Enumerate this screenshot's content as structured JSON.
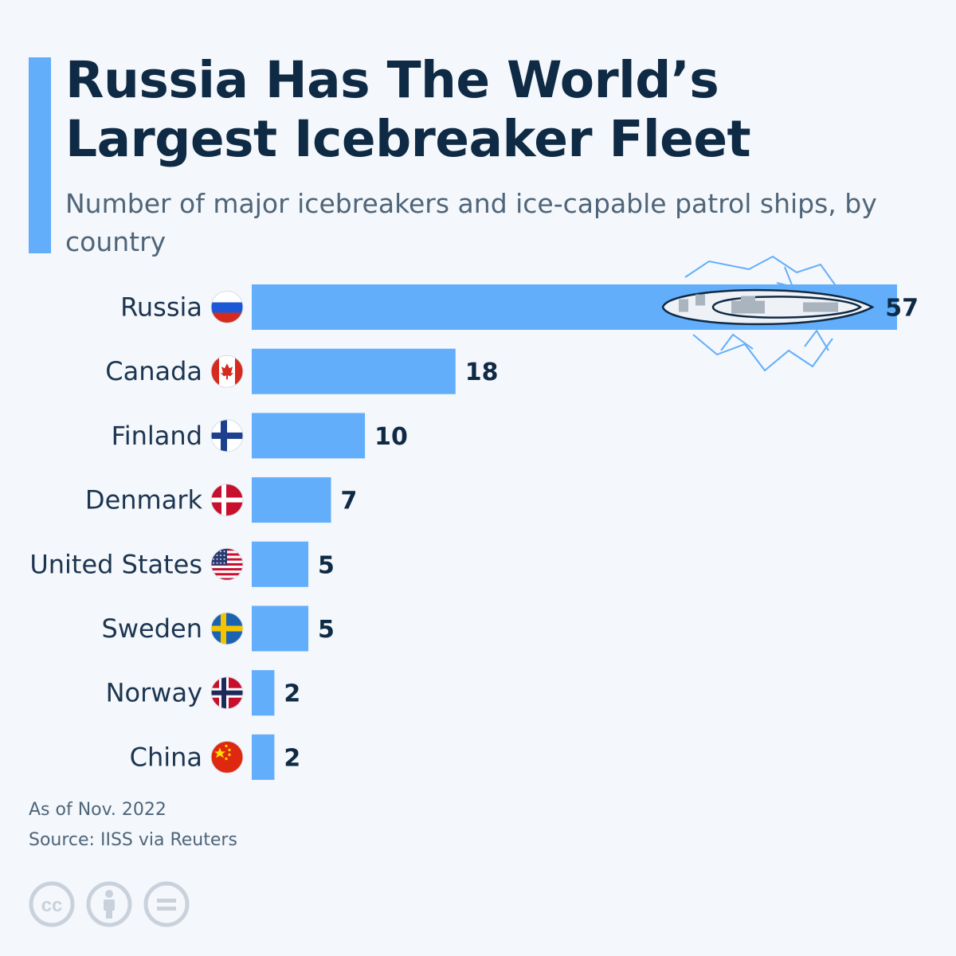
{
  "title": "Russia Has The World’s Largest Icebreaker Fleet",
  "subtitle": "Number of major icebreakers and ice-capable patrol ships, by country",
  "chart_data": {
    "type": "bar",
    "orientation": "horizontal",
    "categories": [
      "Russia",
      "Canada",
      "Finland",
      "Denmark",
      "United States",
      "Sweden",
      "Norway",
      "China"
    ],
    "values": [
      57,
      18,
      10,
      7,
      5,
      5,
      2,
      2
    ],
    "flags": [
      "russia-flag-icon",
      "canada-flag-icon",
      "finland-flag-icon",
      "denmark-flag-icon",
      "usa-flag-icon",
      "sweden-flag-icon",
      "norway-flag-icon",
      "china-flag-icon"
    ],
    "bar_color": "#62aefb",
    "xlim": [
      0,
      57
    ],
    "grid": false,
    "legend": "none"
  },
  "footer": {
    "note": "As of Nov. 2022",
    "source": "Source: IISS via Reuters",
    "license_icons": [
      "cc-icon",
      "attribution-icon",
      "no-derivatives-icon"
    ]
  },
  "colors": {
    "accent": "#62aefb",
    "title": "#0f2a44",
    "background": "#f4f7fb"
  }
}
